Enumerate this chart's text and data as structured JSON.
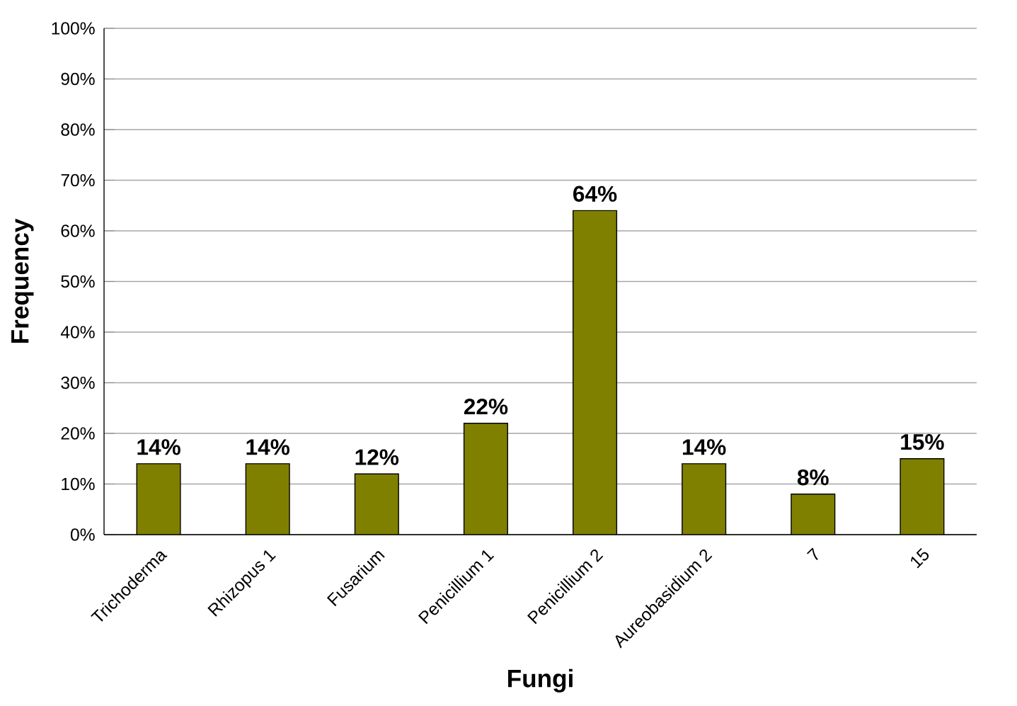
{
  "chart_data": {
    "type": "bar",
    "xlabel": "Fungi",
    "ylabel": "Frequency",
    "categories": [
      "Trichoderma",
      "Rhizopus 1",
      "Fusarium",
      "Penicillium 1",
      "Penicillium 2",
      "Aureobasidium 2",
      "7",
      "15"
    ],
    "values": [
      14,
      14,
      12,
      22,
      64,
      14,
      8,
      15
    ],
    "value_labels": [
      "14%",
      "14%",
      "12%",
      "22%",
      "64%",
      "14%",
      "8%",
      "15%"
    ],
    "color": "#808000",
    "ylim": [
      0,
      100
    ],
    "yticks": [
      {
        "value": 0,
        "label": "0%"
      },
      {
        "value": 10,
        "label": "10%"
      },
      {
        "value": 20,
        "label": "20%"
      },
      {
        "value": 30,
        "label": "30%"
      },
      {
        "value": 40,
        "label": "40%"
      },
      {
        "value": 50,
        "label": "50%"
      },
      {
        "value": 60,
        "label": "60%"
      },
      {
        "value": 70,
        "label": "70%"
      },
      {
        "value": 80,
        "label": "80%"
      },
      {
        "value": 90,
        "label": "90%"
      },
      {
        "value": 100,
        "label": "100%"
      }
    ],
    "grid": "y"
  }
}
